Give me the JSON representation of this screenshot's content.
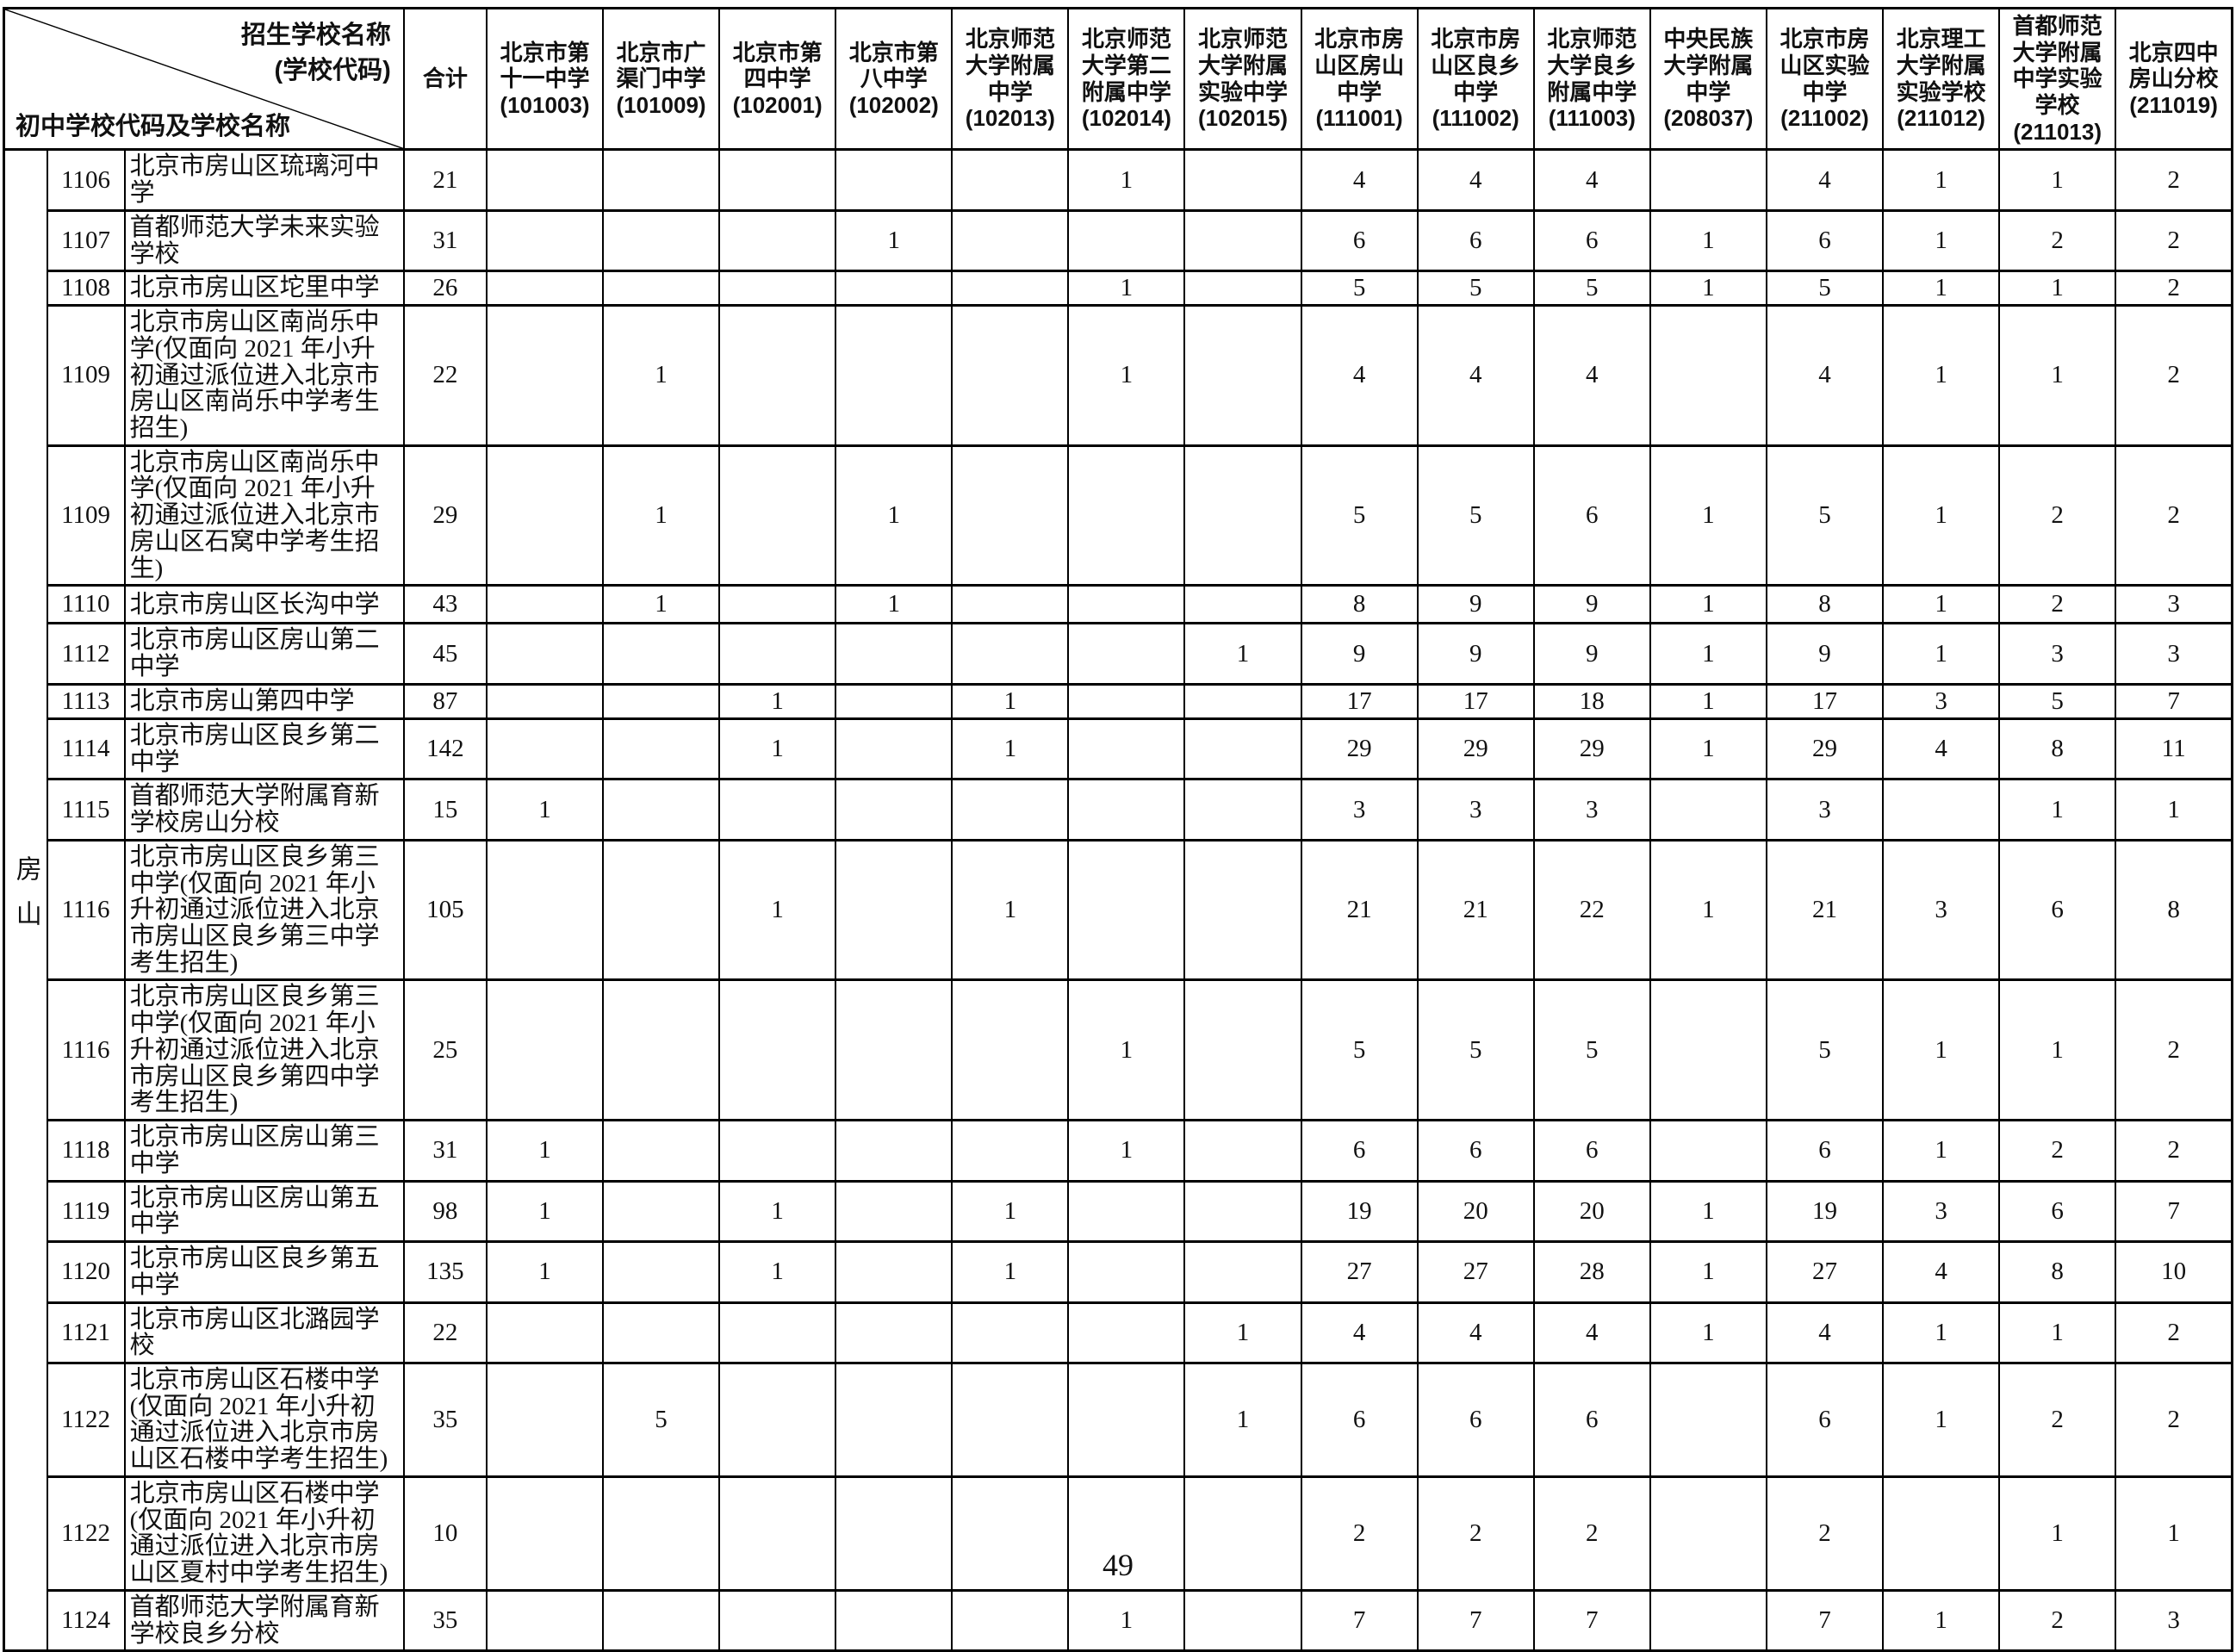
{
  "page_number": "49",
  "region_label": "房山",
  "header": {
    "corner": {
      "top_right": [
        "招生学校名称",
        "(学校代码)"
      ],
      "bottom_left": "初中学校代码及学校名称"
    },
    "total_label": "合计",
    "schools": [
      {
        "name": "北京市第十一中学",
        "code": "(101003)"
      },
      {
        "name": "北京市广渠门中学",
        "code": "(101009)"
      },
      {
        "name": "北京市第四中学",
        "code": "(102001)"
      },
      {
        "name": "北京市第八中学",
        "code": "(102002)"
      },
      {
        "name": "北京师范大学附属中学",
        "code": "(102013)"
      },
      {
        "name": "北京师范大学第二附属中学",
        "code": "(102014)"
      },
      {
        "name": "北京师范大学附属实验中学",
        "code": "(102015)"
      },
      {
        "name": "北京市房山区房山中学",
        "code": "(111001)"
      },
      {
        "name": "北京市房山区良乡中学",
        "code": "(111002)"
      },
      {
        "name": "北京师范大学良乡附属中学",
        "code": "(111003)"
      },
      {
        "name": "中央民族大学附属中学",
        "code": "(208037)"
      },
      {
        "name": "北京市房山区实验中学",
        "code": "(211002)"
      },
      {
        "name": "北京理工大学附属实验学校",
        "code": "(211012)"
      },
      {
        "name": "首都师范大学附属中学实验学校",
        "code": "(211013)"
      },
      {
        "name": "北京四中房山分校",
        "code": "(211019)"
      }
    ]
  },
  "rows": [
    {
      "code": "1106",
      "name": "北京市房山区琉璃河中学",
      "total": "21",
      "values": [
        "",
        "",
        "",
        "",
        "",
        "1",
        "",
        "4",
        "4",
        "4",
        "",
        "4",
        "1",
        "1",
        "2"
      ]
    },
    {
      "code": "1107",
      "name": "首都师范大学未来实验学校",
      "total": "31",
      "values": [
        "",
        "",
        "",
        "1",
        "",
        "",
        "",
        "6",
        "6",
        "6",
        "1",
        "6",
        "1",
        "2",
        "2"
      ]
    },
    {
      "code": "1108",
      "name": "北京市房山区坨里中学",
      "total": "26",
      "values": [
        "",
        "",
        "",
        "",
        "",
        "1",
        "",
        "5",
        "5",
        "5",
        "1",
        "5",
        "1",
        "1",
        "2"
      ]
    },
    {
      "code": "1109",
      "name": "北京市房山区南尚乐中学(仅面向 2021 年小升初通过派位进入北京市房山区南尚乐中学考生招生)",
      "total": "22",
      "values": [
        "",
        "1",
        "",
        "",
        "",
        "1",
        "",
        "4",
        "4",
        "4",
        "",
        "4",
        "1",
        "1",
        "2"
      ]
    },
    {
      "code": "1109",
      "name": "北京市房山区南尚乐中学(仅面向 2021 年小升初通过派位进入北京市房山区石窝中学考生招生)",
      "total": "29",
      "values": [
        "",
        "1",
        "",
        "1",
        "",
        "",
        "",
        "5",
        "5",
        "6",
        "1",
        "5",
        "1",
        "2",
        "2"
      ]
    },
    {
      "code": "1110",
      "name": "北京市房山区长沟中学",
      "total": "43",
      "values": [
        "",
        "1",
        "",
        "1",
        "",
        "",
        "",
        "8",
        "9",
        "9",
        "1",
        "8",
        "1",
        "2",
        "3"
      ]
    },
    {
      "code": "1112",
      "name": "北京市房山区房山第二中学",
      "total": "45",
      "values": [
        "",
        "",
        "",
        "",
        "",
        "",
        "1",
        "9",
        "9",
        "9",
        "1",
        "9",
        "1",
        "3",
        "3"
      ]
    },
    {
      "code": "1113",
      "name": "北京市房山第四中学",
      "total": "87",
      "values": [
        "",
        "",
        "1",
        "",
        "1",
        "",
        "",
        "17",
        "17",
        "18",
        "1",
        "17",
        "3",
        "5",
        "7"
      ]
    },
    {
      "code": "1114",
      "name": "北京市房山区良乡第二中学",
      "total": "142",
      "values": [
        "",
        "",
        "1",
        "",
        "1",
        "",
        "",
        "29",
        "29",
        "29",
        "1",
        "29",
        "4",
        "8",
        "11"
      ]
    },
    {
      "code": "1115",
      "name": "首都师范大学附属育新学校房山分校",
      "total": "15",
      "values": [
        "1",
        "",
        "",
        "",
        "",
        "",
        "",
        "3",
        "3",
        "3",
        "",
        "3",
        "",
        "1",
        "1"
      ]
    },
    {
      "code": "1116",
      "name": "北京市房山区良乡第三中学(仅面向 2021 年小升初通过派位进入北京市房山区良乡第三中学考生招生)",
      "total": "105",
      "values": [
        "",
        "",
        "1",
        "",
        "1",
        "",
        "",
        "21",
        "21",
        "22",
        "1",
        "21",
        "3",
        "6",
        "8"
      ]
    },
    {
      "code": "1116",
      "name": "北京市房山区良乡第三中学(仅面向 2021 年小升初通过派位进入北京市房山区良乡第四中学考生招生)",
      "total": "25",
      "values": [
        "",
        "",
        "",
        "",
        "",
        "1",
        "",
        "5",
        "5",
        "5",
        "",
        "5",
        "1",
        "1",
        "2"
      ]
    },
    {
      "code": "1118",
      "name": "北京市房山区房山第三中学",
      "total": "31",
      "values": [
        "1",
        "",
        "",
        "",
        "",
        "1",
        "",
        "6",
        "6",
        "6",
        "",
        "6",
        "1",
        "2",
        "2"
      ]
    },
    {
      "code": "1119",
      "name": "北京市房山区房山第五中学",
      "total": "98",
      "values": [
        "1",
        "",
        "1",
        "",
        "1",
        "",
        "",
        "19",
        "20",
        "20",
        "1",
        "19",
        "3",
        "6",
        "7"
      ]
    },
    {
      "code": "1120",
      "name": "北京市房山区良乡第五中学",
      "total": "135",
      "values": [
        "1",
        "",
        "1",
        "",
        "1",
        "",
        "",
        "27",
        "27",
        "28",
        "1",
        "27",
        "4",
        "8",
        "10"
      ]
    },
    {
      "code": "1121",
      "name": "北京市房山区北潞园学校",
      "total": "22",
      "values": [
        "",
        "",
        "",
        "",
        "",
        "",
        "1",
        "4",
        "4",
        "4",
        "1",
        "4",
        "1",
        "1",
        "2"
      ]
    },
    {
      "code": "1122",
      "name": "北京市房山区石楼中学(仅面向 2021 年小升初通过派位进入北京市房山区石楼中学考生招生)",
      "total": "35",
      "values": [
        "",
        "5",
        "",
        "",
        "",
        "",
        "1",
        "6",
        "6",
        "6",
        "",
        "6",
        "1",
        "2",
        "2"
      ]
    },
    {
      "code": "1122",
      "name": "北京市房山区石楼中学(仅面向 2021 年小升初通过派位进入北京市房山区夏村中学考生招生)",
      "total": "10",
      "values": [
        "",
        "",
        "",
        "",
        "",
        "",
        "",
        "2",
        "2",
        "2",
        "",
        "2",
        "",
        "1",
        "1"
      ]
    },
    {
      "code": "1124",
      "name": "首都师范大学附属育新学校良乡分校",
      "total": "35",
      "values": [
        "",
        "",
        "",
        "",
        "",
        "1",
        "",
        "7",
        "7",
        "7",
        "",
        "7",
        "1",
        "2",
        "3"
      ]
    }
  ]
}
